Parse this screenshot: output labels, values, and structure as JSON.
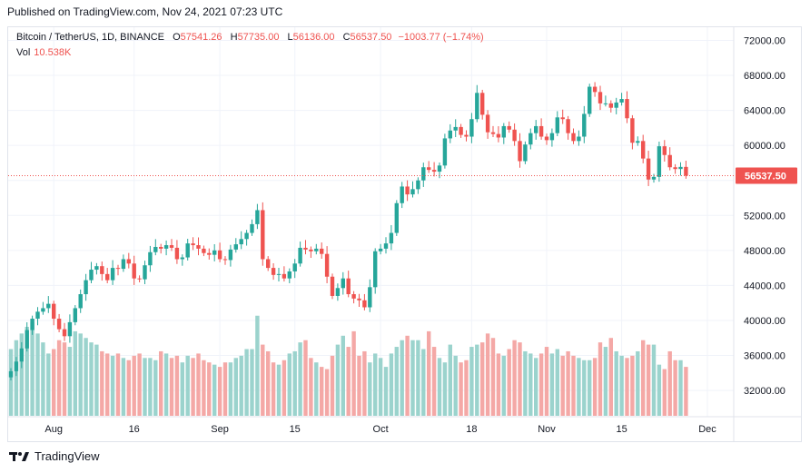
{
  "header": {
    "published": "Published on TradingView.com, Nov 24, 2021 07:23 UTC"
  },
  "legend": {
    "symbol": "Bitcoin / TetherUS, 1D, BINANCE",
    "o_label": "O",
    "o_value": "57541.26",
    "h_label": "H",
    "h_value": "57735.00",
    "l_label": "L",
    "l_value": "56136.00",
    "c_label": "C",
    "c_value": "56537.50",
    "change": "−1003.77 (−1.74%)",
    "vol_label": "Vol",
    "vol_value": "10.538K"
  },
  "footer": {
    "brand": "TradingView"
  },
  "colors": {
    "up": "#26a69a",
    "down": "#ef5350",
    "up_vol": "#9bd3cd",
    "down_vol": "#f4a8a6",
    "grid": "#f0f3fa"
  },
  "chart_data": {
    "type": "candlestick",
    "ylim": [
      29000,
      73500
    ],
    "y_ticks": [
      "72000.00",
      "68000.00",
      "64000.00",
      "60000.00",
      "56000.00",
      "52000.00",
      "48000.00",
      "44000.00",
      "40000.00",
      "36000.00",
      "32000.00"
    ],
    "x_ticks": [
      {
        "label": "Aug",
        "index": 8
      },
      {
        "label": "16",
        "index": 23
      },
      {
        "label": "Sep",
        "index": 39
      },
      {
        "label": "15",
        "index": 53
      },
      {
        "label": "Oct",
        "index": 69
      },
      {
        "label": "18",
        "index": 86
      },
      {
        "label": "Nov",
        "index": 100
      },
      {
        "label": "15",
        "index": 114
      },
      {
        "label": "Dec",
        "index": 130
      }
    ],
    "last_price": 56537.5,
    "last_price_label": "56537.50",
    "closes": [
      34200,
      35300,
      36800,
      38900,
      40200,
      41000,
      41400,
      41900,
      40200,
      39000,
      38200,
      39800,
      41400,
      43000,
      44600,
      45800,
      46200,
      45300,
      44600,
      46000,
      45900,
      47000,
      46500,
      44800,
      44700,
      46300,
      47800,
      48400,
      48200,
      48600,
      48300,
      47000,
      47200,
      48800,
      48600,
      48200,
      47700,
      47500,
      48000,
      47000,
      46900,
      48100,
      48700,
      49300,
      50000,
      51000,
      52600,
      47000,
      46000,
      45200,
      45300,
      44800,
      45600,
      46500,
      48300,
      48100,
      47900,
      48200,
      47600,
      45000,
      42800,
      43700,
      44800,
      43000,
      42500,
      42300,
      41500,
      43800,
      47900,
      48200,
      48800,
      50000,
      53400,
      55300,
      54400,
      55000,
      56000,
      57500,
      57200,
      57000,
      57700,
      60800,
      61700,
      62100,
      61200,
      61000,
      63000,
      66000,
      63500,
      61500,
      61300,
      60900,
      62200,
      61800,
      60500,
      58200,
      60100,
      61400,
      62200,
      61000,
      60600,
      61400,
      63200,
      63000,
      61400,
      60500,
      61000,
      63600,
      66700,
      66100,
      64800,
      64800,
      64300,
      64900,
      65300,
      63100,
      60300,
      60500,
      58500,
      56100,
      56400,
      59900,
      58900,
      57500,
      57300,
      57541,
      56538
    ],
    "volumes": [
      30,
      34,
      37,
      40,
      42,
      37,
      33,
      28,
      30,
      34,
      33,
      31,
      38,
      37,
      35,
      33,
      32,
      29,
      28,
      27,
      28,
      26,
      25,
      27,
      28,
      26,
      26,
      25,
      29,
      28,
      26,
      27,
      24,
      27,
      26,
      28,
      25,
      24,
      23,
      22,
      24,
      24,
      26,
      27,
      30,
      30,
      45,
      32,
      29,
      24,
      23,
      25,
      28,
      29,
      33,
      34,
      26,
      24,
      22,
      21,
      27,
      32,
      36,
      31,
      38,
      27,
      29,
      24,
      28,
      26,
      22,
      28,
      31,
      34,
      36,
      34,
      34,
      30,
      38,
      31,
      26,
      24,
      32,
      27,
      24,
      25,
      31,
      32,
      33,
      37,
      35,
      28,
      27,
      30,
      34,
      33,
      29,
      28,
      26,
      28,
      31,
      28,
      30,
      27,
      29,
      27,
      26,
      25,
      25,
      26,
      33,
      31,
      35,
      29,
      27,
      26,
      27,
      29,
      34,
      32,
      32,
      23,
      21,
      29,
      25,
      25,
      22
    ]
  }
}
